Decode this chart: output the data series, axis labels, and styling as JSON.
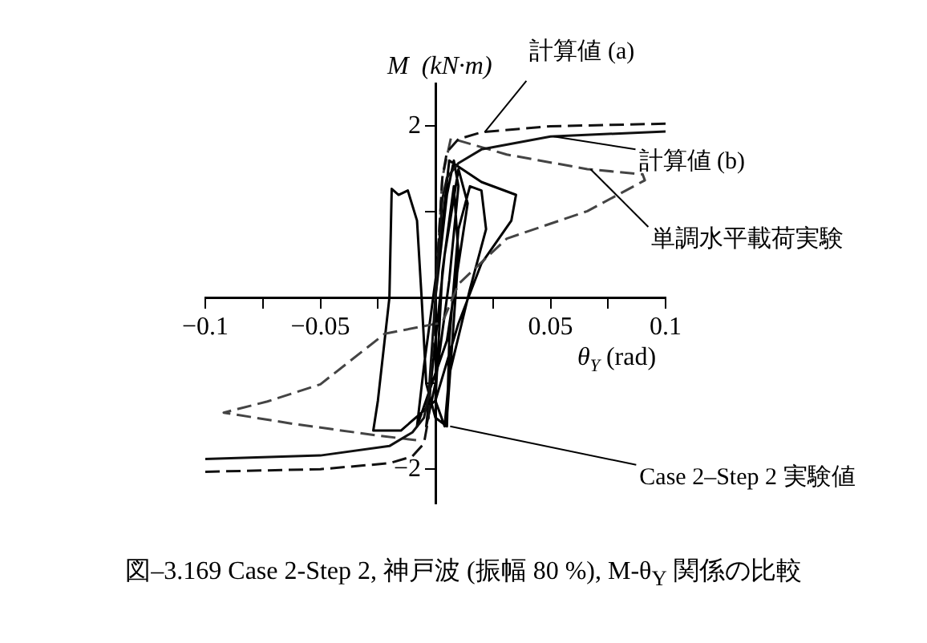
{
  "chart_data": {
    "type": "line",
    "xlabel": "θ$_{Y}$ (rad)",
    "ylabel": "M  (kN·m)",
    "title": "図–3.169  Case 2-Step 2, 神戸波 (振幅 80 %), M-θ$_{Y}$ 関係の比較",
    "xlim": [
      -0.1,
      0.1
    ],
    "ylim": [
      -2.4,
      2.5
    ],
    "xticks": [
      -0.1,
      {
        "value": -0.075,
        "label": null
      },
      -0.05,
      {
        "value": -0.025,
        "label": null
      },
      {
        "value": 0,
        "label": null
      },
      {
        "value": 0.025,
        "label": null
      },
      0.05,
      {
        "value": 0.075,
        "label": null
      },
      0.1
    ],
    "yticks": [
      {
        "value": -2,
        "label": "−2"
      },
      {
        "value": -1,
        "label": null
      },
      {
        "value": 1,
        "label": null
      },
      2
    ],
    "grid": false,
    "legend": false,
    "marker": "none",
    "series": [
      {
        "name": "計算値 (a)",
        "color": "#111111",
        "line_style": "dashed",
        "x": [
          -0.1,
          -0.05,
          -0.02,
          -0.01,
          -0.005,
          -0.003,
          0,
          0.003,
          0.005,
          0.01,
          0.02,
          0.05,
          0.1
        ],
        "values": [
          -2.03,
          -2.0,
          -1.93,
          -1.85,
          -1.7,
          -1.4,
          0,
          1.4,
          1.7,
          1.85,
          1.93,
          2.0,
          2.03
        ]
      },
      {
        "name": "計算値 (b)",
        "color": "#111111",
        "line_style": "solid",
        "x": [
          -0.1,
          -0.05,
          -0.02,
          -0.01,
          -0.005,
          -0.003,
          0,
          0.003,
          0.005,
          0.01,
          0.02,
          0.05,
          0.1
        ],
        "values": [
          -1.88,
          -1.84,
          -1.73,
          -1.57,
          -1.4,
          -1.15,
          0,
          1.15,
          1.4,
          1.57,
          1.73,
          1.88,
          1.94
        ]
      },
      {
        "name": "単調水平載荷実験",
        "color": "#444444",
        "line_style": "dashed",
        "x": [
          0,
          0.003,
          0.0067,
          0.031,
          0.066,
          0.09,
          0.091,
          0.066,
          0.031,
          0.01,
          0.003,
          -0.022,
          -0.05,
          -0.073,
          -0.092,
          -0.062,
          -0.027,
          -0.006
        ],
        "values": [
          0,
          1.4,
          1.86,
          1.67,
          1.5,
          1.44,
          1.37,
          1.01,
          0.69,
          0.16,
          -0.29,
          -0.42,
          -1.01,
          -1.21,
          -1.34,
          -1.47,
          -1.6,
          -1.67
        ]
      },
      {
        "name": "Case 2–Step 2 実験値",
        "color": "#000000",
        "line_style": "solid",
        "x": [
          0,
          0.005,
          0.008,
          0.01,
          0.006,
          0,
          -0.004,
          -0.002,
          0.004,
          0.01,
          0.014,
          0.005,
          -0.008,
          -0.005,
          0.002,
          0.006,
          0.02,
          0.035,
          0.033,
          0.02,
          0.01,
          0,
          -0.015,
          -0.027,
          -0.025,
          -0.02,
          -0.019,
          -0.016,
          -0.012,
          -0.008,
          -0.006,
          -0.004,
          0,
          0.005,
          0.006,
          0.01,
          0.015,
          0.02,
          0.022,
          0.015,
          0.006,
          0.004,
          0,
          0.003,
          0.008,
          0.01,
          0.005
        ],
        "values": [
          0,
          1.2,
          1.6,
          1.3,
          0.2,
          -1.0,
          -1.5,
          -1.0,
          0.5,
          1.5,
          1.1,
          -0.5,
          -1.5,
          -0.8,
          0.6,
          1.6,
          1.35,
          1.2,
          0.9,
          0.4,
          -0.3,
          -1.2,
          -1.55,
          -1.55,
          -1.2,
          0,
          1.27,
          1.2,
          1.25,
          0.9,
          0,
          -1.0,
          -1.4,
          -1.5,
          -0.5,
          0.8,
          1.3,
          1.25,
          0.8,
          0.1,
          -0.9,
          -1.5,
          -1.2,
          0.3,
          1.3,
          0.5,
          -1.4
        ]
      }
    ]
  }
}
